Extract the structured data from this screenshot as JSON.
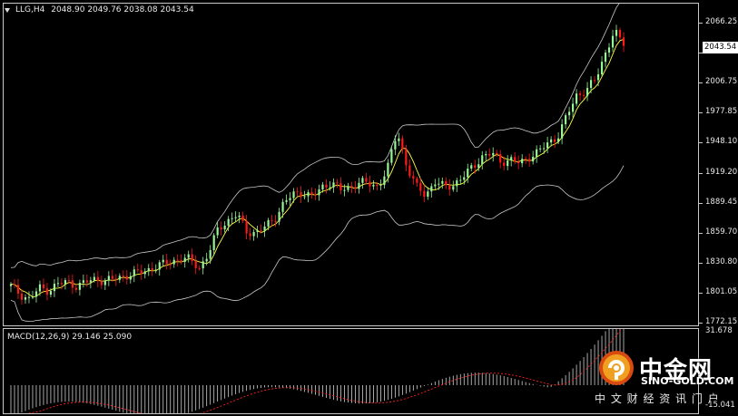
{
  "price_chart": {
    "symbol_header": "LLG,H4",
    "ohlc_header": "2048.90 2049.76 2038.08 2043.54",
    "current_price": "2043.54",
    "scale_labels": [
      "2066.25",
      "2036.50",
      "2006.75",
      "1977.85",
      "1948.10",
      "1919.20",
      "1889.45",
      "1859.70",
      "1830.80",
      "1801.05",
      "1772.15"
    ]
  },
  "macd_chart": {
    "header": "MACD(12,26,9) 29.146 25.090",
    "scale_labels": [
      "31.678",
      "-15.041"
    ]
  },
  "colors": {
    "background": "#000000",
    "bull_candle": "#98f598",
    "bear_candle": "#ff1a1a",
    "bollinger": "#c8c8c8",
    "ma_line": "#ffff40",
    "macd_hist": "#d0d0d0",
    "macd_signal": "#ff2020"
  },
  "watermark": {
    "brand_cn": "中金网",
    "brand_en": "SINO-GOLD.COM",
    "slogan": "中 文 财 经 资 讯 门 户"
  },
  "chart_data": {
    "type": "candlestick",
    "timeframe": "H4",
    "ylim": [
      1772.15,
      2066.25
    ],
    "close_path": [
      1808,
      1800,
      1795,
      1806,
      1804,
      1810,
      1812,
      1808,
      1812,
      1815,
      1813,
      1815,
      1818,
      1820,
      1822,
      1826,
      1829,
      1832,
      1835,
      1834,
      1826,
      1840,
      1865,
      1872,
      1878,
      1862,
      1860,
      1866,
      1875,
      1890,
      1898,
      1900,
      1895,
      1905,
      1910,
      1902,
      1905,
      1910,
      1908,
      1906,
      1925,
      1960,
      1925,
      1905,
      1898,
      1910,
      1905,
      1908,
      1915,
      1925,
      1935,
      1938,
      1930,
      1932,
      1928,
      1935,
      1940,
      1948,
      1955,
      1975,
      1995,
      2000,
      2010,
      2035,
      2058,
      2043.54
    ]
  }
}
